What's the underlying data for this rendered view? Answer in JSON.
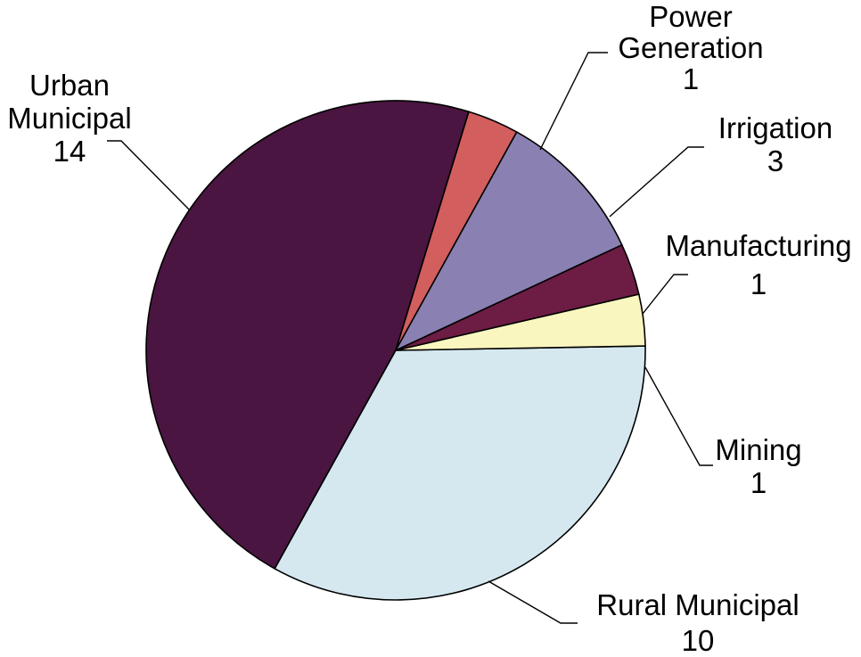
{
  "chart_data": {
    "type": "pie",
    "title": "",
    "start_angle_deg": 61,
    "direction": "counterclockwise",
    "slices": [
      {
        "label": "Power Generation",
        "value": 1,
        "color": "#d25e5e"
      },
      {
        "label": "Urban Municipal",
        "value": 14,
        "color": "#4a1540"
      },
      {
        "label": "Rural Municipal",
        "value": 10,
        "color": "#d5e8f0"
      },
      {
        "label": "Mining",
        "value": 1,
        "color": "#faf6bf"
      },
      {
        "label": "Manufacturing",
        "value": 1,
        "color": "#6d1c44"
      },
      {
        "label": "Irrigation",
        "value": 3,
        "color": "#8a80b2"
      }
    ]
  }
}
